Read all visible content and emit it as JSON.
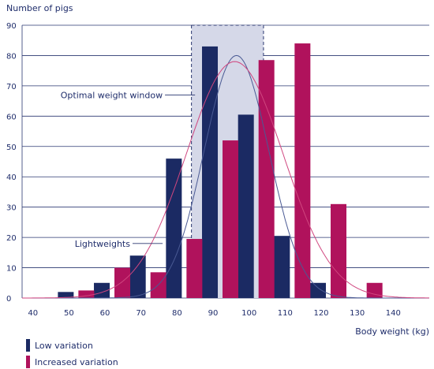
{
  "chart_data": {
    "type": "bar",
    "ylabel": "Number of pigs",
    "xlabel": "Body weight (kg)",
    "ylim": [
      0,
      90
    ],
    "yticks": [
      0,
      10,
      20,
      30,
      40,
      50,
      60,
      70,
      80,
      90
    ],
    "xlim": [
      37,
      150
    ],
    "xticks": [
      40,
      50,
      60,
      70,
      80,
      90,
      100,
      110,
      120,
      130,
      140
    ],
    "grid": true,
    "legend_position": "bottom-left",
    "series": [
      {
        "name": "Low variation",
        "color": "#1b2a63",
        "x": [
          50,
          60,
          70,
          80,
          90,
          100,
          110,
          120,
          130
        ],
        "values": [
          2,
          5,
          14,
          46,
          83,
          60.5,
          20.5,
          5,
          0
        ]
      },
      {
        "name": "Increased variation",
        "color": "#b0125c",
        "x": [
          50,
          60,
          70,
          80,
          90,
          100,
          110,
          120,
          130
        ],
        "values": [
          2.5,
          10,
          8.5,
          19.5,
          52,
          78.5,
          84,
          31,
          5
        ]
      }
    ],
    "curves": [
      {
        "series": "Low variation",
        "mean": 96.5,
        "sd": 9,
        "peak": 80,
        "color": "#4a5a94"
      },
      {
        "series": "Increased variation",
        "mean": 96,
        "sd": 13.5,
        "peak": 78,
        "color": "#d0467f"
      }
    ],
    "highlight": {
      "label": "Optimal weight window",
      "x_range": [
        84,
        104
      ],
      "color": "#d5d8e8"
    },
    "annotations": [
      {
        "text": "Optimal weight window",
        "x": 76,
        "y": 67,
        "arrow_to": [
          85,
          67
        ]
      },
      {
        "text": "Lightweights",
        "x": 67,
        "y": 18,
        "arrow_to": [
          76,
          18
        ]
      }
    ]
  }
}
